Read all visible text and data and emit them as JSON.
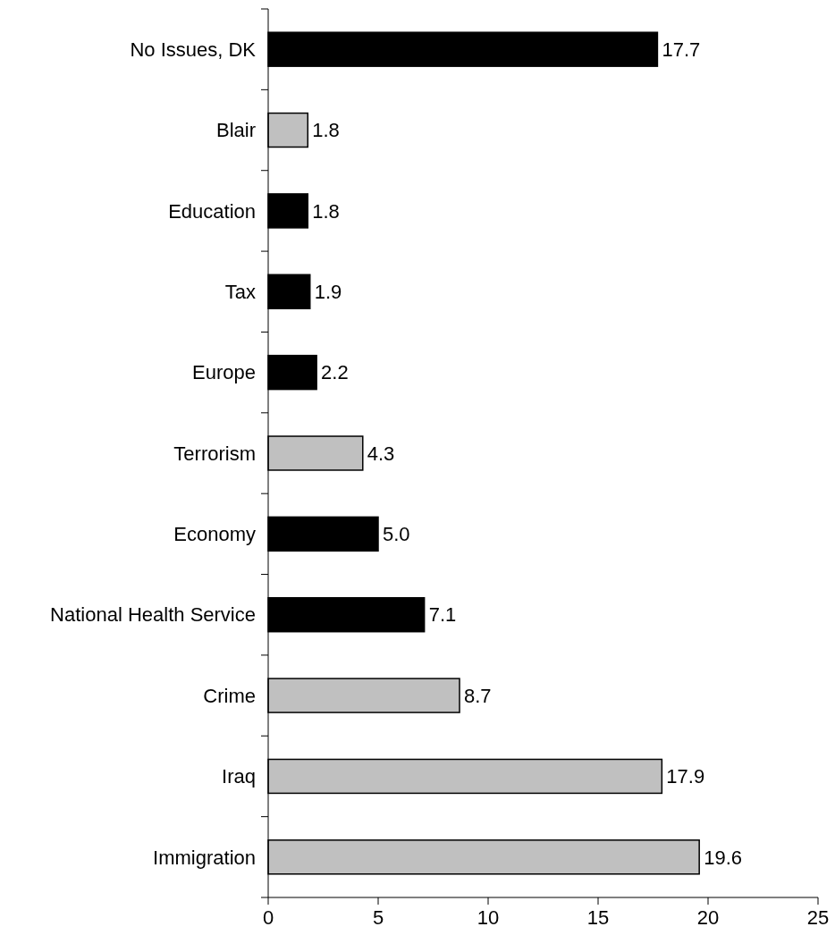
{
  "chart_data": {
    "type": "bar",
    "orientation": "horizontal",
    "categories": [
      "No Issues, DK",
      "Blair",
      "Education",
      "Tax",
      "Europe",
      "Terrorism",
      "Economy",
      "National Health Service",
      "Crime",
      "Iraq",
      "Immigration"
    ],
    "values": [
      17.7,
      1.8,
      1.8,
      1.9,
      2.2,
      4.3,
      5.0,
      7.1,
      8.7,
      17.9,
      19.6
    ],
    "value_labels": [
      "17.7",
      "1.8",
      "1.8",
      "1.9",
      "2.2",
      "4.3",
      "5.0",
      "7.1",
      "8.7",
      "17.9",
      "19.6"
    ],
    "colors": [
      "#000000",
      "#c0c0c0",
      "#000000",
      "#000000",
      "#000000",
      "#c0c0c0",
      "#000000",
      "#000000",
      "#c0c0c0",
      "#c0c0c0",
      "#c0c0c0"
    ],
    "xlim": [
      0,
      25
    ],
    "xticks": [
      0,
      5,
      10,
      15,
      20,
      25
    ]
  }
}
